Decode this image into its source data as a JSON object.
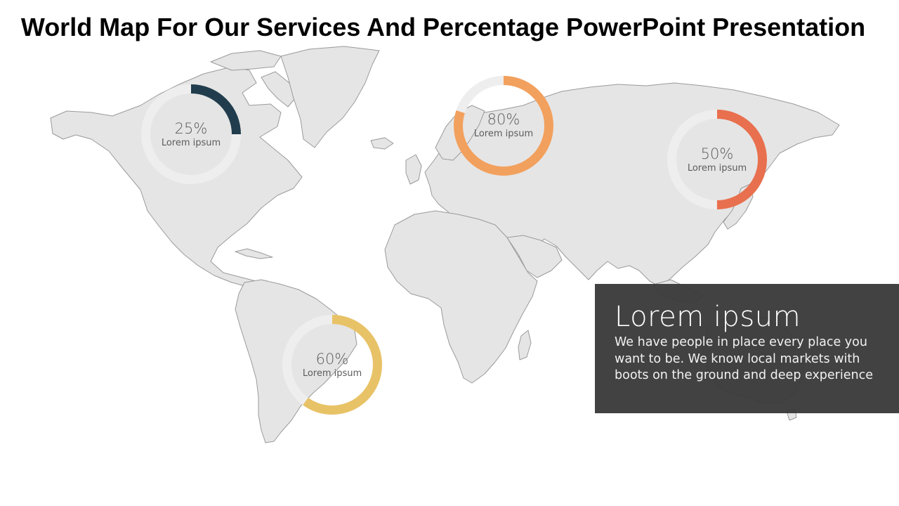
{
  "slide": {
    "title": "World Map For Our Services And Percentage PowerPoint Presentation"
  },
  "rings": [
    {
      "id": "north-america",
      "percent": 25,
      "percent_label": "25%",
      "label": "Lorem ipsum",
      "color": "#213d4d"
    },
    {
      "id": "europe",
      "percent": 80,
      "percent_label": "80%",
      "label": "Lorem ipsum",
      "color": "#f2a05d"
    },
    {
      "id": "asia",
      "percent": 50,
      "percent_label": "50%",
      "label": "Lorem ipsum",
      "color": "#e8704e"
    },
    {
      "id": "south-america",
      "percent": 60,
      "percent_label": "60%",
      "label": "Lorem ipsum",
      "color": "#e8c266"
    }
  ],
  "info_box": {
    "heading": "Lorem ipsum",
    "body": "We have people in place every place you want to be. We know local markets with boots on the ground and deep experience"
  },
  "colors": {
    "land": "#e5e5e5",
    "coastline": "#9a9a9a",
    "ring_track": "#eeeeee",
    "info_box_bg": "#3a3a3a"
  }
}
